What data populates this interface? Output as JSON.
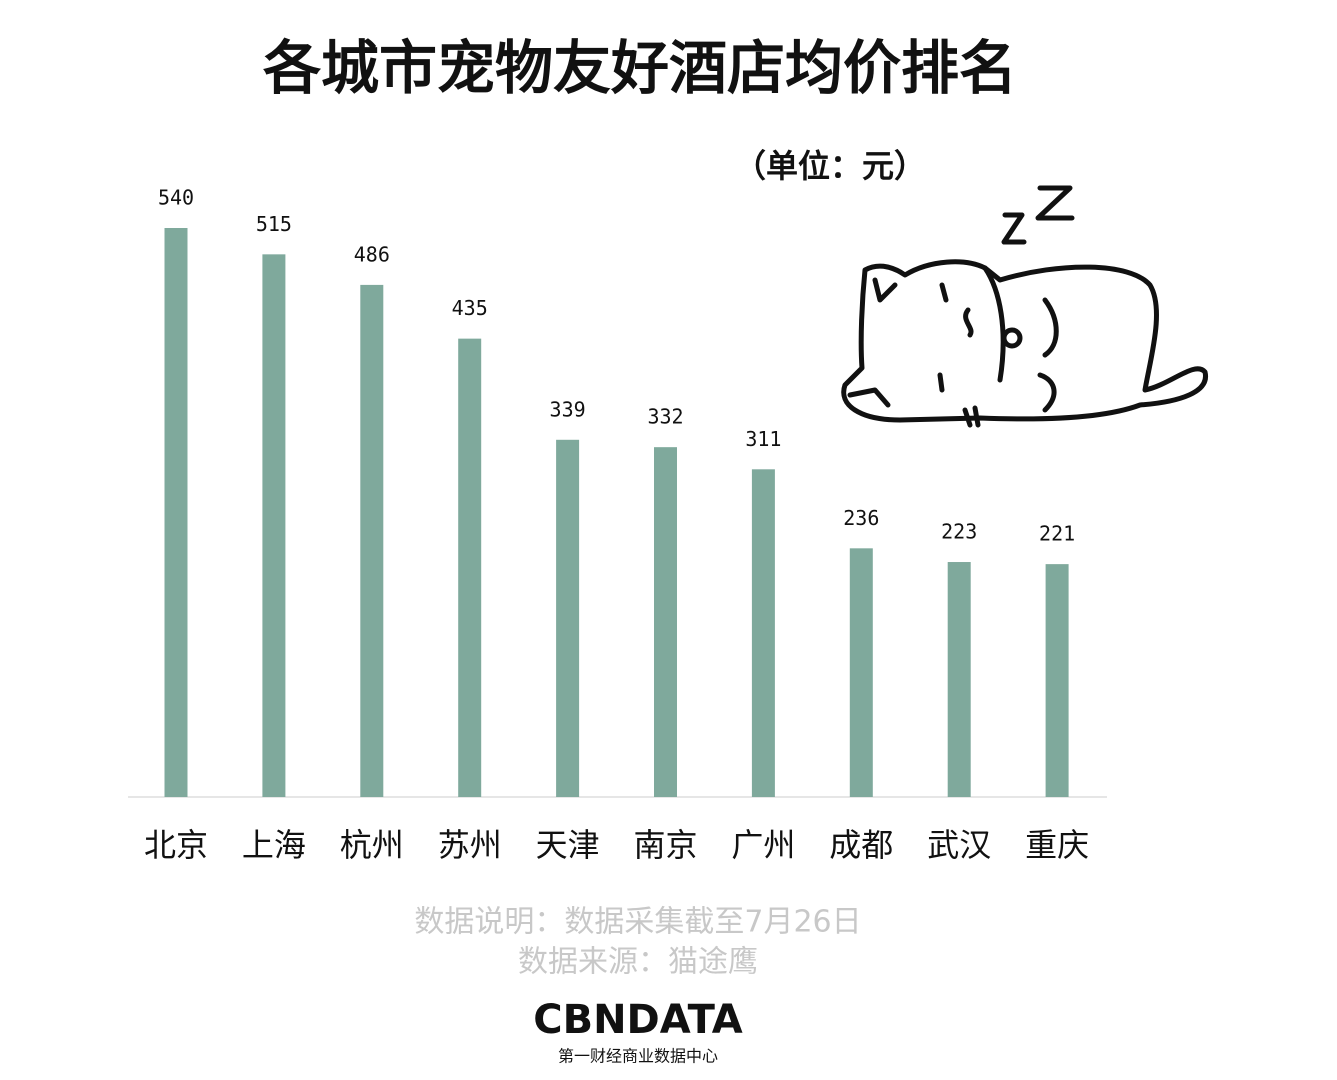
{
  "chart_data": {
    "type": "bar",
    "title": "各城市宠物友好酒店均价排名",
    "unit": "（单位：元）",
    "categories": [
      "北京",
      "上海",
      "杭州",
      "苏州",
      "天津",
      "南京",
      "广州",
      "成都",
      "武汉",
      "重庆"
    ],
    "values": [
      540,
      515,
      486,
      435,
      339,
      332,
      311,
      236,
      223,
      221
    ],
    "color": "#7fa99c",
    "notes": [
      "数据说明：数据采集截至7月26日",
      "数据来源：猫途鹰"
    ],
    "logo": "CBNDATA",
    "logo_subtitle": "第一财经商业数据中心"
  }
}
